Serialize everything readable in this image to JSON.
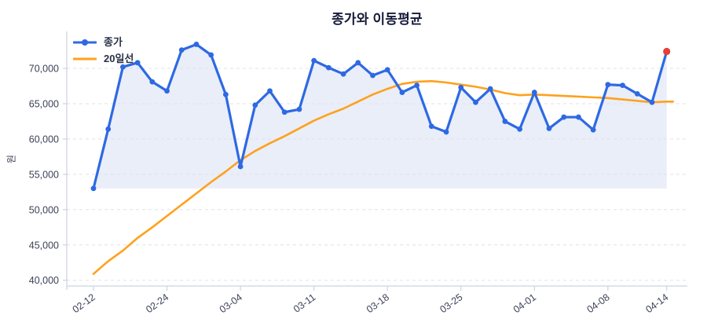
{
  "chart_data": {
    "type": "line",
    "title": "종가와 이동평균",
    "ylabel": "원",
    "xlabel": "",
    "grid": true,
    "legend_position": "top-left",
    "x_tick_labels": [
      "02-12",
      "02-24",
      "03-04",
      "03-11",
      "03-18",
      "03-25",
      "04-01",
      "04-08",
      "04-14"
    ],
    "x_tick_point_indices": [
      0,
      5,
      10,
      15,
      20,
      25,
      30,
      35,
      39
    ],
    "y_ticks": [
      40000,
      45000,
      50000,
      55000,
      60000,
      65000,
      70000
    ],
    "y_tick_labels": [
      "40,000",
      "45,000",
      "50,000",
      "55,000",
      "60,000",
      "65,000",
      "70,000"
    ],
    "ylim": [
      39300,
      75230
    ],
    "series": [
      {
        "name": "종가",
        "type": "line-with-markers",
        "color": "#2e69e3",
        "area_fill": true,
        "values": [
          53000,
          61400,
          70200,
          70800,
          68100,
          66800,
          72600,
          73400,
          71900,
          66300,
          56100,
          64800,
          66800,
          63800,
          64200,
          71100,
          70100,
          69200,
          70800,
          69000,
          69800,
          66600,
          67600,
          61800,
          61000,
          67300,
          65200,
          67100,
          62500,
          61400,
          66600,
          61500,
          63100,
          63100,
          61300,
          67700,
          67600,
          66400,
          65200,
          72400
        ]
      },
      {
        "name": "20일선",
        "type": "line",
        "color": "#ffa11c",
        "area_fill": false,
        "values": [
          40900,
          42700,
          44200,
          46000,
          47500,
          49100,
          50700,
          52300,
          53900,
          55400,
          57000,
          58300,
          59400,
          60400,
          61500,
          62600,
          63500,
          64300,
          65300,
          66300,
          67100,
          67800,
          68100,
          68200,
          68000,
          67700,
          67400,
          67000,
          66500,
          66200,
          66300,
          66200,
          66100,
          66000,
          65900,
          65800,
          65600,
          65400,
          65200,
          65300
        ]
      }
    ],
    "highlight": {
      "point_index": 39,
      "marker_color": "#e83d38",
      "note": "last close highlighted red"
    }
  },
  "colors": {
    "close_line": "#2e69e3",
    "ma_line": "#ffa11c",
    "last_marker": "#e83d38",
    "area_fill": "#e9eef9",
    "gridline": "#e1e1e8",
    "axis": "#ccd3e1",
    "tick_text": "#3c4257",
    "title_text": "#161b38",
    "background": "#ffffff"
  },
  "legend": {
    "items": [
      {
        "label": "종가",
        "swatch": "line-with-dot",
        "color": "#2e69e3"
      },
      {
        "label": "20일선",
        "swatch": "line",
        "color": "#ffa11c"
      }
    ]
  }
}
